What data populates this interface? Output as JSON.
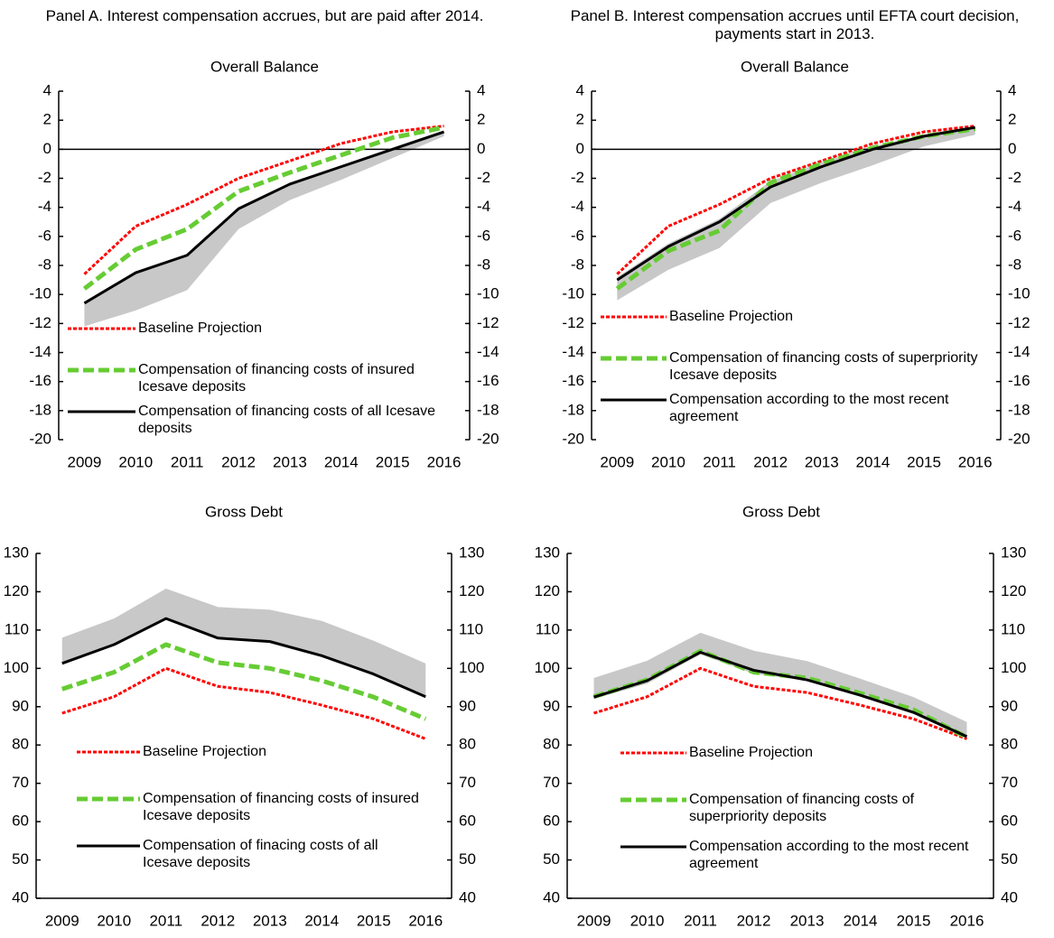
{
  "chart_data": [
    {
      "type": "line",
      "panel_title": "Panel A. Interest compensation accrues, but are paid after 2014.",
      "title": "Overall Balance",
      "categories": [
        "2009",
        "2010",
        "2011",
        "2012",
        "2013",
        "2014",
        "2015",
        "2016"
      ],
      "series": [
        {
          "name": "Baseline Projection",
          "color": "#ff0000",
          "dash": "dotted",
          "values": [
            -8.6,
            -5.3,
            -3.8,
            -2.0,
            -0.8,
            0.4,
            1.2,
            1.6
          ]
        },
        {
          "name": "Compensation of financing costs of insured Icesave deposits",
          "color": "#66cc33",
          "dash": "dashed",
          "values": [
            -9.6,
            -6.9,
            -5.5,
            -2.9,
            -1.6,
            -0.4,
            0.8,
            1.5
          ]
        },
        {
          "name": "Compensation of financing costs of all Icesave deposits",
          "color": "#000000",
          "dash": "solid",
          "values": [
            -10.6,
            -8.5,
            -7.3,
            -4.1,
            -2.4,
            -1.2,
            0.0,
            1.2
          ]
        }
      ],
      "band": {
        "color": "#c8c8c8",
        "lower": [
          -12.2,
          -11.1,
          -9.7,
          -5.5,
          -3.5,
          -2.1,
          -0.6,
          0.9
        ],
        "upper": [
          -10.6,
          -8.5,
          -7.3,
          -4.1,
          -2.4,
          -1.2,
          0.0,
          1.2
        ]
      },
      "ylim": [
        -20,
        4
      ],
      "yticks": [
        4,
        2,
        0,
        -2,
        -4,
        -6,
        -8,
        -10,
        -12,
        -14,
        -16,
        -18,
        -20
      ],
      "y2lim": [
        -20,
        4
      ],
      "y2ticks": [
        4,
        2,
        0,
        -2,
        -4,
        -6,
        -8,
        -10,
        -12,
        -14,
        -16,
        -18,
        -20
      ]
    },
    {
      "type": "line",
      "panel_title": "Panel B. Interest compensation accrues until EFTA court decision, payments start in 2013.",
      "title": "Overall Balance",
      "categories": [
        "2009",
        "2010",
        "2011",
        "2012",
        "2013",
        "2014",
        "2015",
        "2016"
      ],
      "series": [
        {
          "name": "Baseline Projection",
          "color": "#ff0000",
          "dash": "dotted",
          "values": [
            -8.6,
            -5.3,
            -3.8,
            -2.0,
            -0.8,
            0.4,
            1.2,
            1.6
          ]
        },
        {
          "name": "Compensation of financing costs of superpriority Icesave deposits",
          "color": "#66cc33",
          "dash": "dashed",
          "values": [
            -9.6,
            -7.0,
            -5.6,
            -2.3,
            -1.0,
            0.1,
            0.9,
            1.4
          ]
        },
        {
          "name": "Compensation according to the most recent agreement",
          "color": "#000000",
          "dash": "solid",
          "values": [
            -9.0,
            -6.7,
            -5.0,
            -2.6,
            -1.2,
            0.0,
            0.9,
            1.5
          ]
        }
      ],
      "band": {
        "color": "#c8c8c8",
        "lower": [
          -10.4,
          -8.3,
          -6.8,
          -3.7,
          -2.3,
          -1.1,
          0.2,
          1.0
        ],
        "upper": [
          -8.8,
          -6.5,
          -4.8,
          -2.2,
          -0.9,
          0.2,
          1.0,
          1.6
        ]
      },
      "ylim": [
        -20,
        4
      ],
      "yticks": [
        4,
        2,
        0,
        -2,
        -4,
        -6,
        -8,
        -10,
        -12,
        -14,
        -16,
        -18,
        -20
      ],
      "y2lim": [
        -20,
        4
      ],
      "y2ticks": [
        4,
        2,
        0,
        -2,
        -4,
        -6,
        -8,
        -10,
        -12,
        -14,
        -16,
        -18,
        -20
      ]
    },
    {
      "type": "line",
      "title": "Gross Debt",
      "categories": [
        "2009",
        "2010",
        "2011",
        "2012",
        "2013",
        "2014",
        "2015",
        "2016"
      ],
      "series": [
        {
          "name": "Baseline Projection",
          "color": "#ff0000",
          "dash": "dotted",
          "values": [
            88.3,
            92.6,
            100.0,
            95.3,
            93.7,
            90.4,
            86.8,
            81.6
          ]
        },
        {
          "name": "Compensation of financing costs of insured Icesave deposits",
          "color": "#66cc33",
          "dash": "dashed",
          "values": [
            94.6,
            99.0,
            106.2,
            101.5,
            100.0,
            96.8,
            92.5,
            86.8
          ]
        },
        {
          "name": "Compensation of finacing costs of all Icesave deposits",
          "color": "#000000",
          "dash": "solid",
          "values": [
            101.3,
            106.2,
            113.0,
            107.9,
            107.0,
            103.3,
            98.5,
            92.6
          ]
        }
      ],
      "band": {
        "color": "#c8c8c8",
        "lower": [
          101.3,
          106.2,
          113.0,
          107.9,
          107.0,
          103.3,
          98.5,
          92.6
        ],
        "upper": [
          108.0,
          113.0,
          120.8,
          116.0,
          115.3,
          112.4,
          107.2,
          101.3
        ]
      },
      "ylim": [
        40,
        130
      ],
      "yticks": [
        130,
        120,
        110,
        100,
        90,
        80,
        70,
        60,
        50,
        40
      ],
      "y2lim": [
        40,
        130
      ],
      "y2ticks": [
        130,
        120,
        110,
        100,
        90,
        80,
        70,
        60,
        50,
        40
      ]
    },
    {
      "type": "line",
      "title": "Gross Debt",
      "categories": [
        "2009",
        "2010",
        "2011",
        "2012",
        "2013",
        "2014",
        "2015",
        "2016"
      ],
      "series": [
        {
          "name": "Baseline Projection",
          "color": "#ff0000",
          "dash": "dotted",
          "values": [
            88.3,
            92.6,
            100.0,
            95.3,
            93.7,
            90.4,
            86.8,
            81.6
          ]
        },
        {
          "name": "Compensation of financing costs of superpriority deposits",
          "color": "#66cc33",
          "dash": "dashed",
          "values": [
            92.6,
            97.0,
            104.5,
            99.0,
            97.5,
            93.5,
            89.2,
            82.0
          ]
        },
        {
          "name": "Compensation according to the most recent agreement",
          "color": "#000000",
          "dash": "solid",
          "values": [
            92.5,
            96.8,
            104.2,
            99.5,
            97.0,
            93.0,
            88.5,
            82.2
          ]
        }
      ],
      "band": {
        "color": "#c8c8c8",
        "lower": [
          92.0,
          96.0,
          103.6,
          98.6,
          96.8,
          92.6,
          88.3,
          81.5
        ],
        "upper": [
          97.5,
          102.0,
          109.3,
          104.6,
          101.9,
          97.3,
          92.5,
          86.0
        ]
      },
      "ylim": [
        40,
        130
      ],
      "yticks": [
        130,
        120,
        110,
        100,
        90,
        80,
        70,
        60,
        50,
        40
      ],
      "y2lim": [
        40,
        130
      ],
      "y2ticks": [
        130,
        120,
        110,
        100,
        90,
        80,
        70,
        60,
        50,
        40
      ]
    }
  ]
}
